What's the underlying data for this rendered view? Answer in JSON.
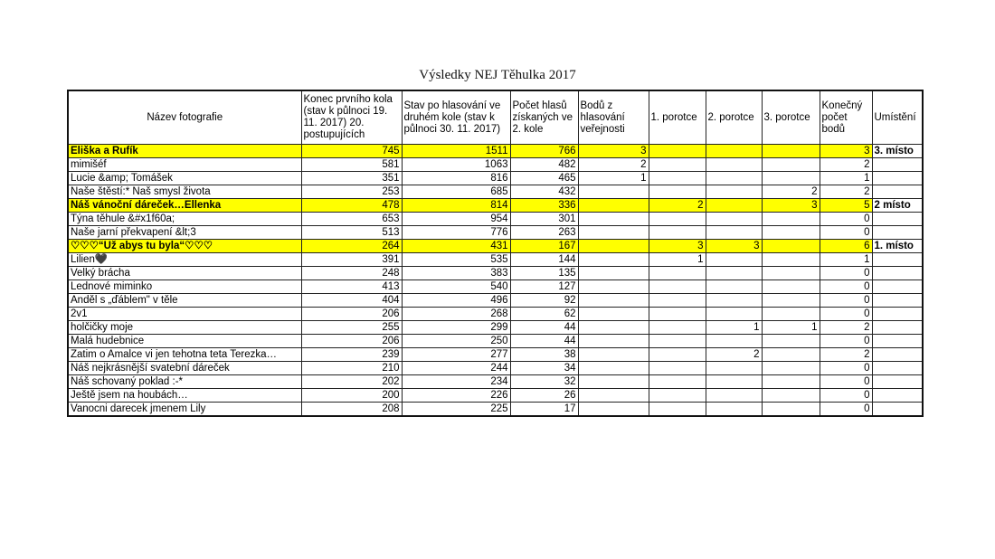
{
  "title": "Výsledky NEJ Těhulka 2017",
  "highlight_color": "#ffff00",
  "columns": [
    "Název fotografie",
    "Konec prvního kola (stav k půlnoci 19. 11. 2017) 20. postupujících",
    "Stav po hlasování ve druhém kole (stav k půlnoci 30. 11. 2017)",
    "Počet hlasů získaných ve 2. kole",
    "Bodů z hlasování veřejnosti",
    "1. porotce",
    "2. porotce",
    "3. porotce",
    "Konečný počet bodů",
    "Umístění"
  ],
  "rows": [
    {
      "hl": true,
      "cells": [
        "Eliška a Rufík",
        "745",
        "1511",
        "766",
        "3",
        "",
        "",
        "",
        "3",
        "3. místo"
      ]
    },
    {
      "hl": false,
      "cells": [
        "mimišéf",
        "581",
        "1063",
        "482",
        "2",
        "",
        "",
        "",
        "2",
        ""
      ]
    },
    {
      "hl": false,
      "cells": [
        "Lucie &amp; Tomášek",
        "351",
        "816",
        "465",
        "1",
        "",
        "",
        "",
        "1",
        ""
      ]
    },
    {
      "hl": false,
      "cells": [
        "Naše štěstí:* Naš smysl života",
        "253",
        "685",
        "432",
        "",
        "",
        "",
        "2",
        "2",
        ""
      ]
    },
    {
      "hl": true,
      "cells": [
        "Náš vánoční dáreček…Ellenka",
        "478",
        "814",
        "336",
        "",
        "2",
        "",
        "3",
        "5",
        "2 místo"
      ]
    },
    {
      "hl": false,
      "cells": [
        "Týna těhule &#x1f60a;",
        "653",
        "954",
        "301",
        "",
        "",
        "",
        "",
        "0",
        ""
      ]
    },
    {
      "hl": false,
      "cells": [
        "Naše jarní překvapení &lt;3",
        "513",
        "776",
        "263",
        "",
        "",
        "",
        "",
        "0",
        ""
      ]
    },
    {
      "hl": true,
      "cells": [
        "♡♡♡“Už abys tu byla“♡♡♡",
        "264",
        "431",
        "167",
        "",
        "3",
        "3",
        "",
        "6",
        "1. místo"
      ]
    },
    {
      "hl": false,
      "cells": [
        "Lilien🖤",
        "391",
        "535",
        "144",
        "",
        "1",
        "",
        "",
        "1",
        ""
      ]
    },
    {
      "hl": false,
      "cells": [
        "Velký brácha",
        "248",
        "383",
        "135",
        "",
        "",
        "",
        "",
        "0",
        ""
      ]
    },
    {
      "hl": false,
      "cells": [
        "Lednové miminko",
        "413",
        "540",
        "127",
        "",
        "",
        "",
        "",
        "0",
        ""
      ]
    },
    {
      "hl": false,
      "cells": [
        "Anděl s „ďáblem\" v těle",
        "404",
        "496",
        "92",
        "",
        "",
        "",
        "",
        "0",
        ""
      ]
    },
    {
      "hl": false,
      "cells": [
        "2v1",
        "206",
        "268",
        "62",
        "",
        "",
        "",
        "",
        "0",
        ""
      ]
    },
    {
      "hl": false,
      "cells": [
        "holčičky moje",
        "255",
        "299",
        "44",
        "",
        "",
        "1",
        "1",
        "2",
        ""
      ]
    },
    {
      "hl": false,
      "cells": [
        "Malá hudebnice",
        "206",
        "250",
        "44",
        "",
        "",
        "",
        "",
        "0",
        ""
      ]
    },
    {
      "hl": false,
      "cells": [
        "Zatim o Amalce vi jen tehotna teta Terezka…",
        "239",
        "277",
        "38",
        "",
        "",
        "2",
        "",
        "2",
        ""
      ]
    },
    {
      "hl": false,
      "cells": [
        "Náš nejkrásnější svatební dáreček",
        "210",
        "244",
        "34",
        "",
        "",
        "",
        "",
        "0",
        ""
      ]
    },
    {
      "hl": false,
      "cells": [
        "Náš schovaný poklad :-*",
        "202",
        "234",
        "32",
        "",
        "",
        "",
        "",
        "0",
        ""
      ]
    },
    {
      "hl": false,
      "cells": [
        "Ještě jsem na houbách…",
        "200",
        "226",
        "26",
        "",
        "",
        "",
        "",
        "0",
        ""
      ]
    },
    {
      "hl": false,
      "cells": [
        "Vanocni darecek jmenem Lily",
        "208",
        "225",
        "17",
        "",
        "",
        "",
        "",
        "0",
        ""
      ]
    }
  ]
}
